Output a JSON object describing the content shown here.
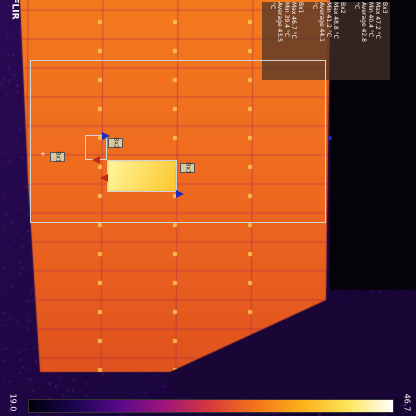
{
  "branding": {
    "logo_text": "FLIR"
  },
  "scale": {
    "min_label": "19.0",
    "max_label": "46.7"
  },
  "measurements": {
    "rows": [
      {
        "name": "Bx1",
        "lines": [
          "Max 46.7 °C",
          "Min 39.4 °C",
          "Average 43.5 °C"
        ]
      },
      {
        "name": "Bx2",
        "lines": [
          "Max 48.8 °C",
          "Min 41.2 °C",
          "Average 44.1 °C"
        ]
      },
      {
        "name": "Bx3",
        "lines": [
          "Max 47.2 °C",
          "Min 40.4 °C",
          "Average 42.8 °C"
        ]
      }
    ]
  },
  "boxes": [
    {
      "tag": "Bx1"
    },
    {
      "tag": "Bx2"
    },
    {
      "tag": "Bx3"
    }
  ],
  "colors": {
    "hot": "#fde45a",
    "warm": "#f3761a",
    "cool": "#5a0a8a",
    "roi": "#cfd4d6"
  }
}
